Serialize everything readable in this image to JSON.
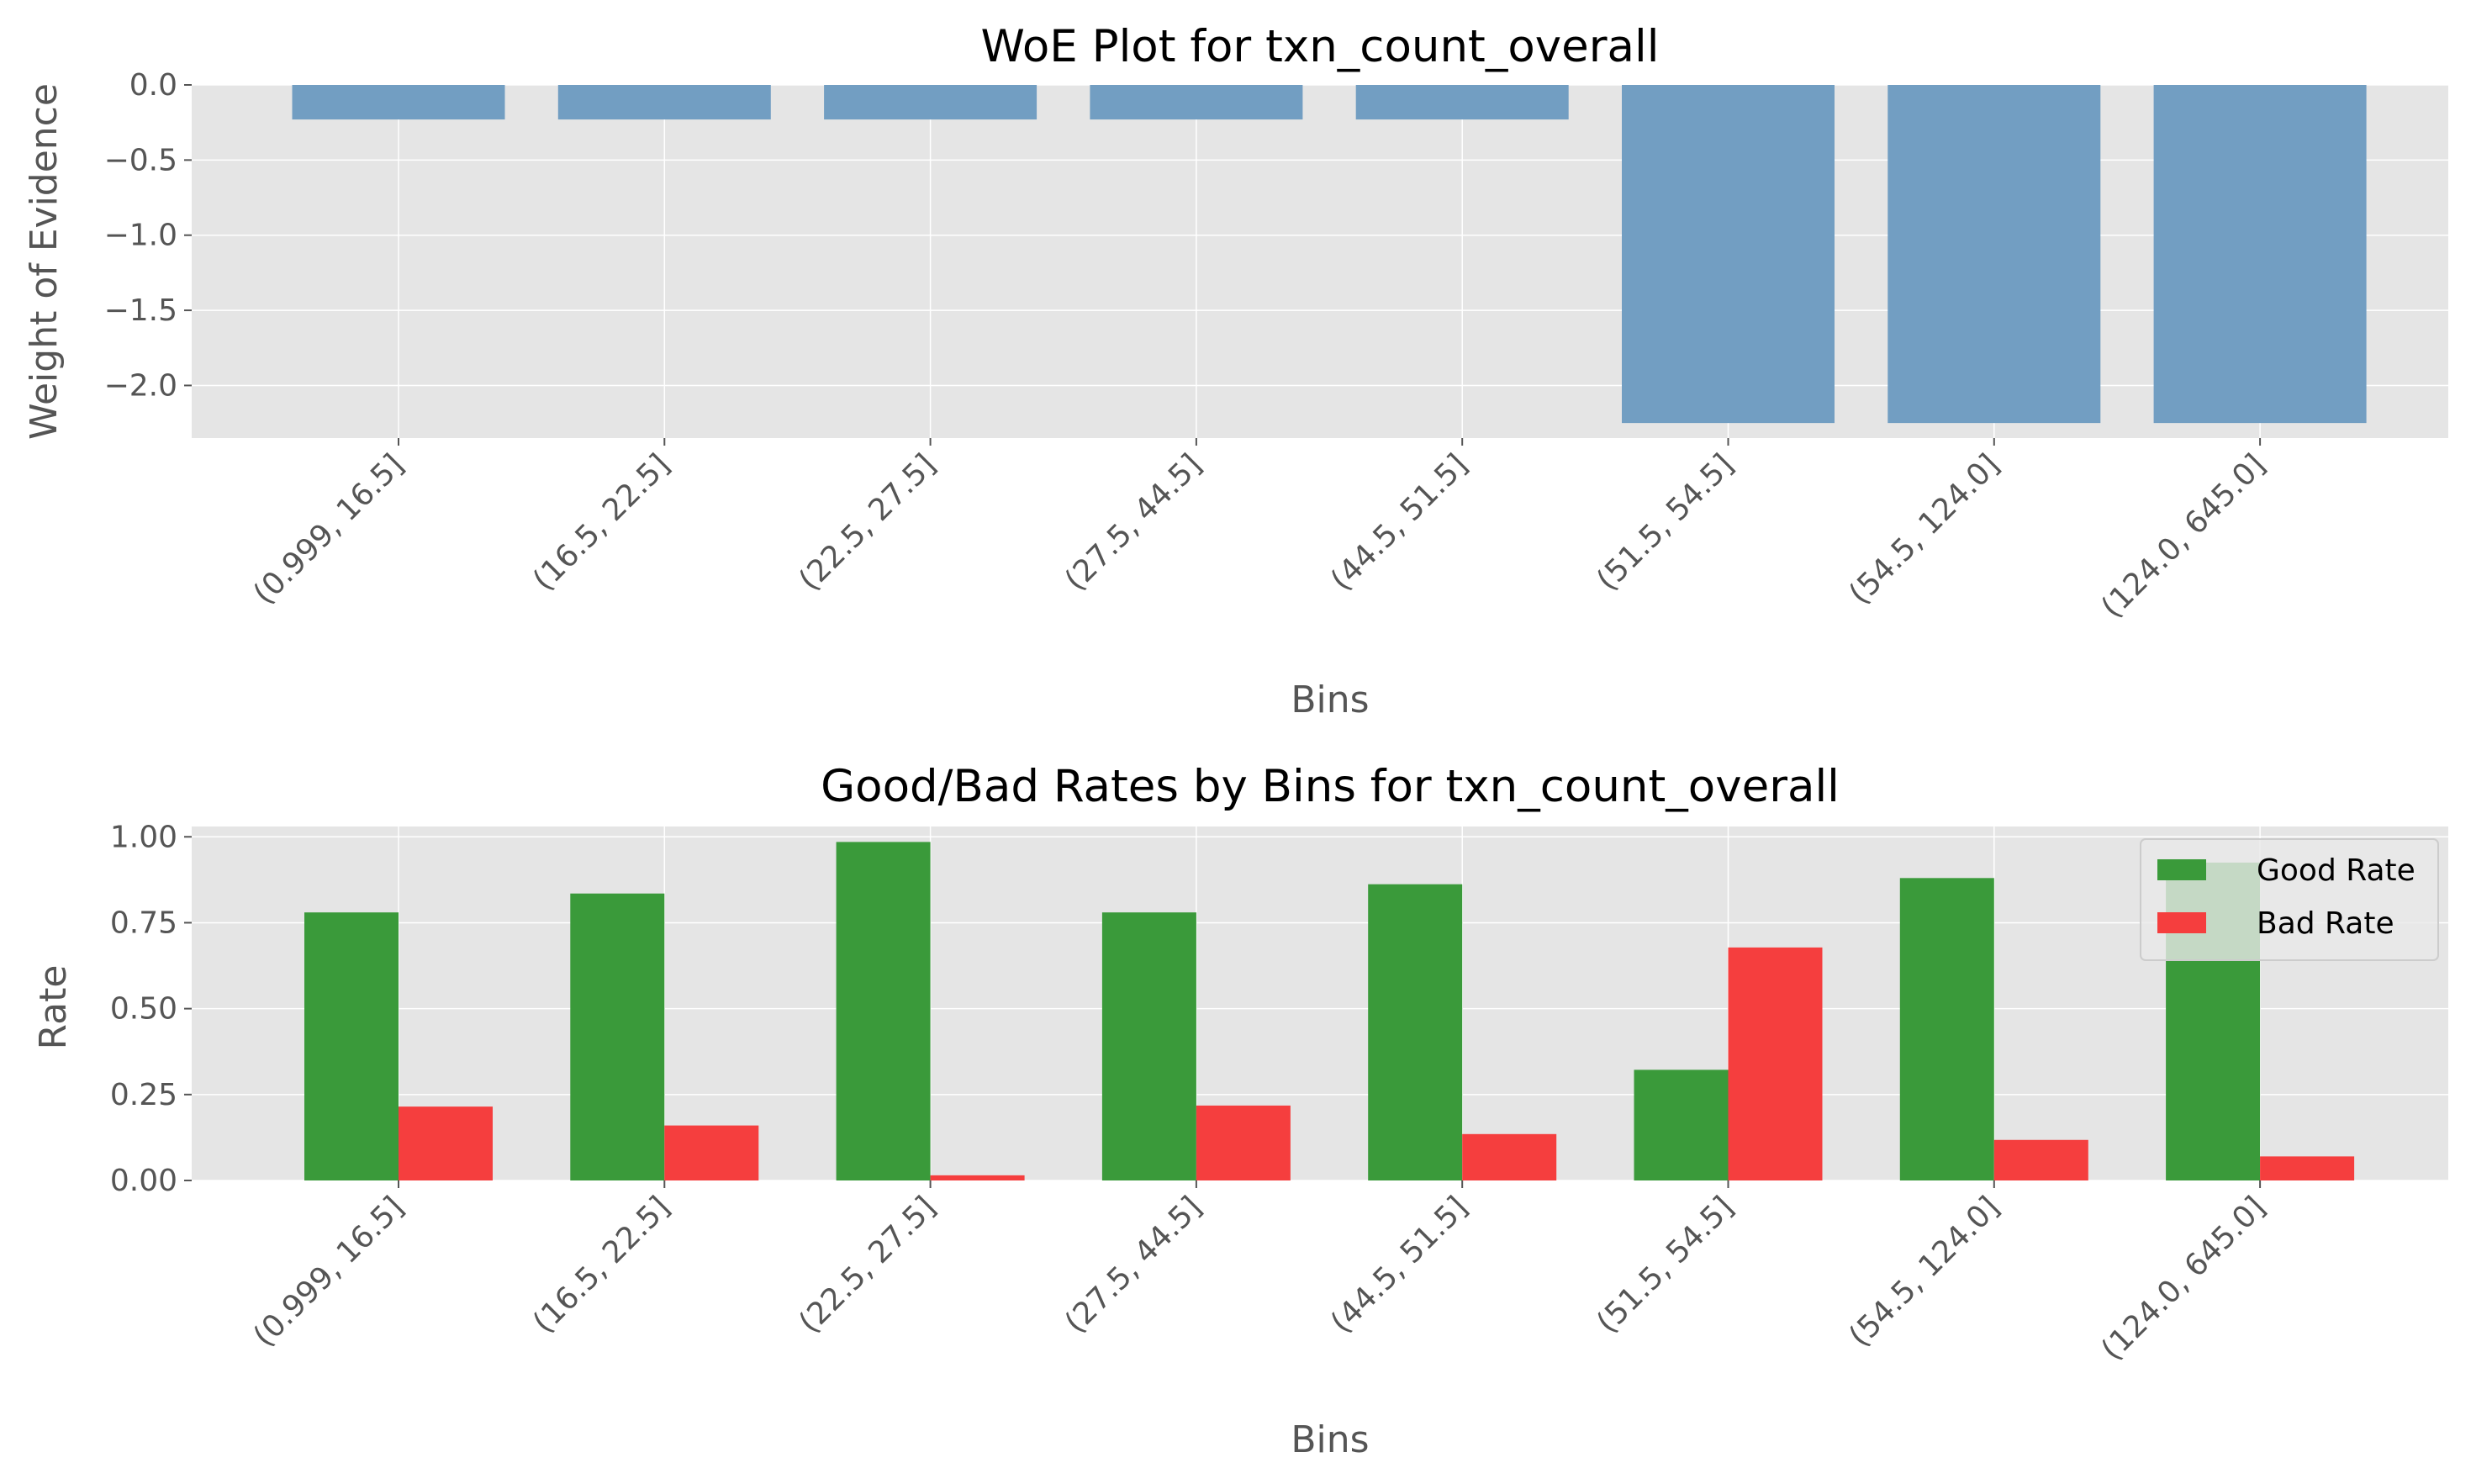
{
  "chart_data": [
    {
      "type": "bar",
      "title": "WoE Plot for txn_count_overall",
      "xlabel": "Bins",
      "ylabel": "Weight of Evidence",
      "categories": [
        "(0.999, 16.5]",
        "(16.5, 22.5]",
        "(22.5, 27.5]",
        "(27.5, 44.5]",
        "(44.5, 51.5]",
        "(51.5, 54.5]",
        "(54.5, 124.0]",
        "(124.0, 645.0]"
      ],
      "values": [
        -0.23,
        -0.23,
        -0.23,
        -0.23,
        -0.23,
        -2.25,
        -2.25,
        -2.25
      ],
      "yticks": [
        "0.0",
        "−0.5",
        "−1.0",
        "−1.5",
        "−2.0"
      ],
      "ytick_values": [
        0,
        -0.5,
        -1.0,
        -1.5,
        -2.0
      ],
      "ylim": [
        -2.35,
        0.0
      ],
      "grid": true,
      "color": "#729ec2"
    },
    {
      "type": "bar",
      "title": "Good/Bad Rates by Bins for txn_count_overall",
      "xlabel": "Bins",
      "ylabel": "Rate",
      "categories": [
        "(0.999, 16.5]",
        "(16.5, 22.5]",
        "(22.5, 27.5]",
        "(27.5, 44.5]",
        "(44.5, 51.5]",
        "(51.5, 54.5]",
        "(54.5, 124.0]",
        "(124.0, 645.0]"
      ],
      "series": [
        {
          "name": "Good Rate",
          "color": "#3a9a3a",
          "values": [
            0.78,
            0.835,
            0.985,
            0.78,
            0.862,
            0.322,
            0.88,
            0.925
          ]
        },
        {
          "name": "Bad Rate",
          "color": "#f53e3e",
          "values": [
            0.215,
            0.16,
            0.015,
            0.218,
            0.135,
            0.678,
            0.118,
            0.07
          ]
        }
      ],
      "yticks": [
        "0.00",
        "0.25",
        "0.50",
        "0.75",
        "1.00"
      ],
      "ytick_values": [
        0,
        0.25,
        0.5,
        0.75,
        1.0
      ],
      "ylim": [
        0,
        1.03
      ],
      "grid": true,
      "legend": "top-right"
    }
  ]
}
